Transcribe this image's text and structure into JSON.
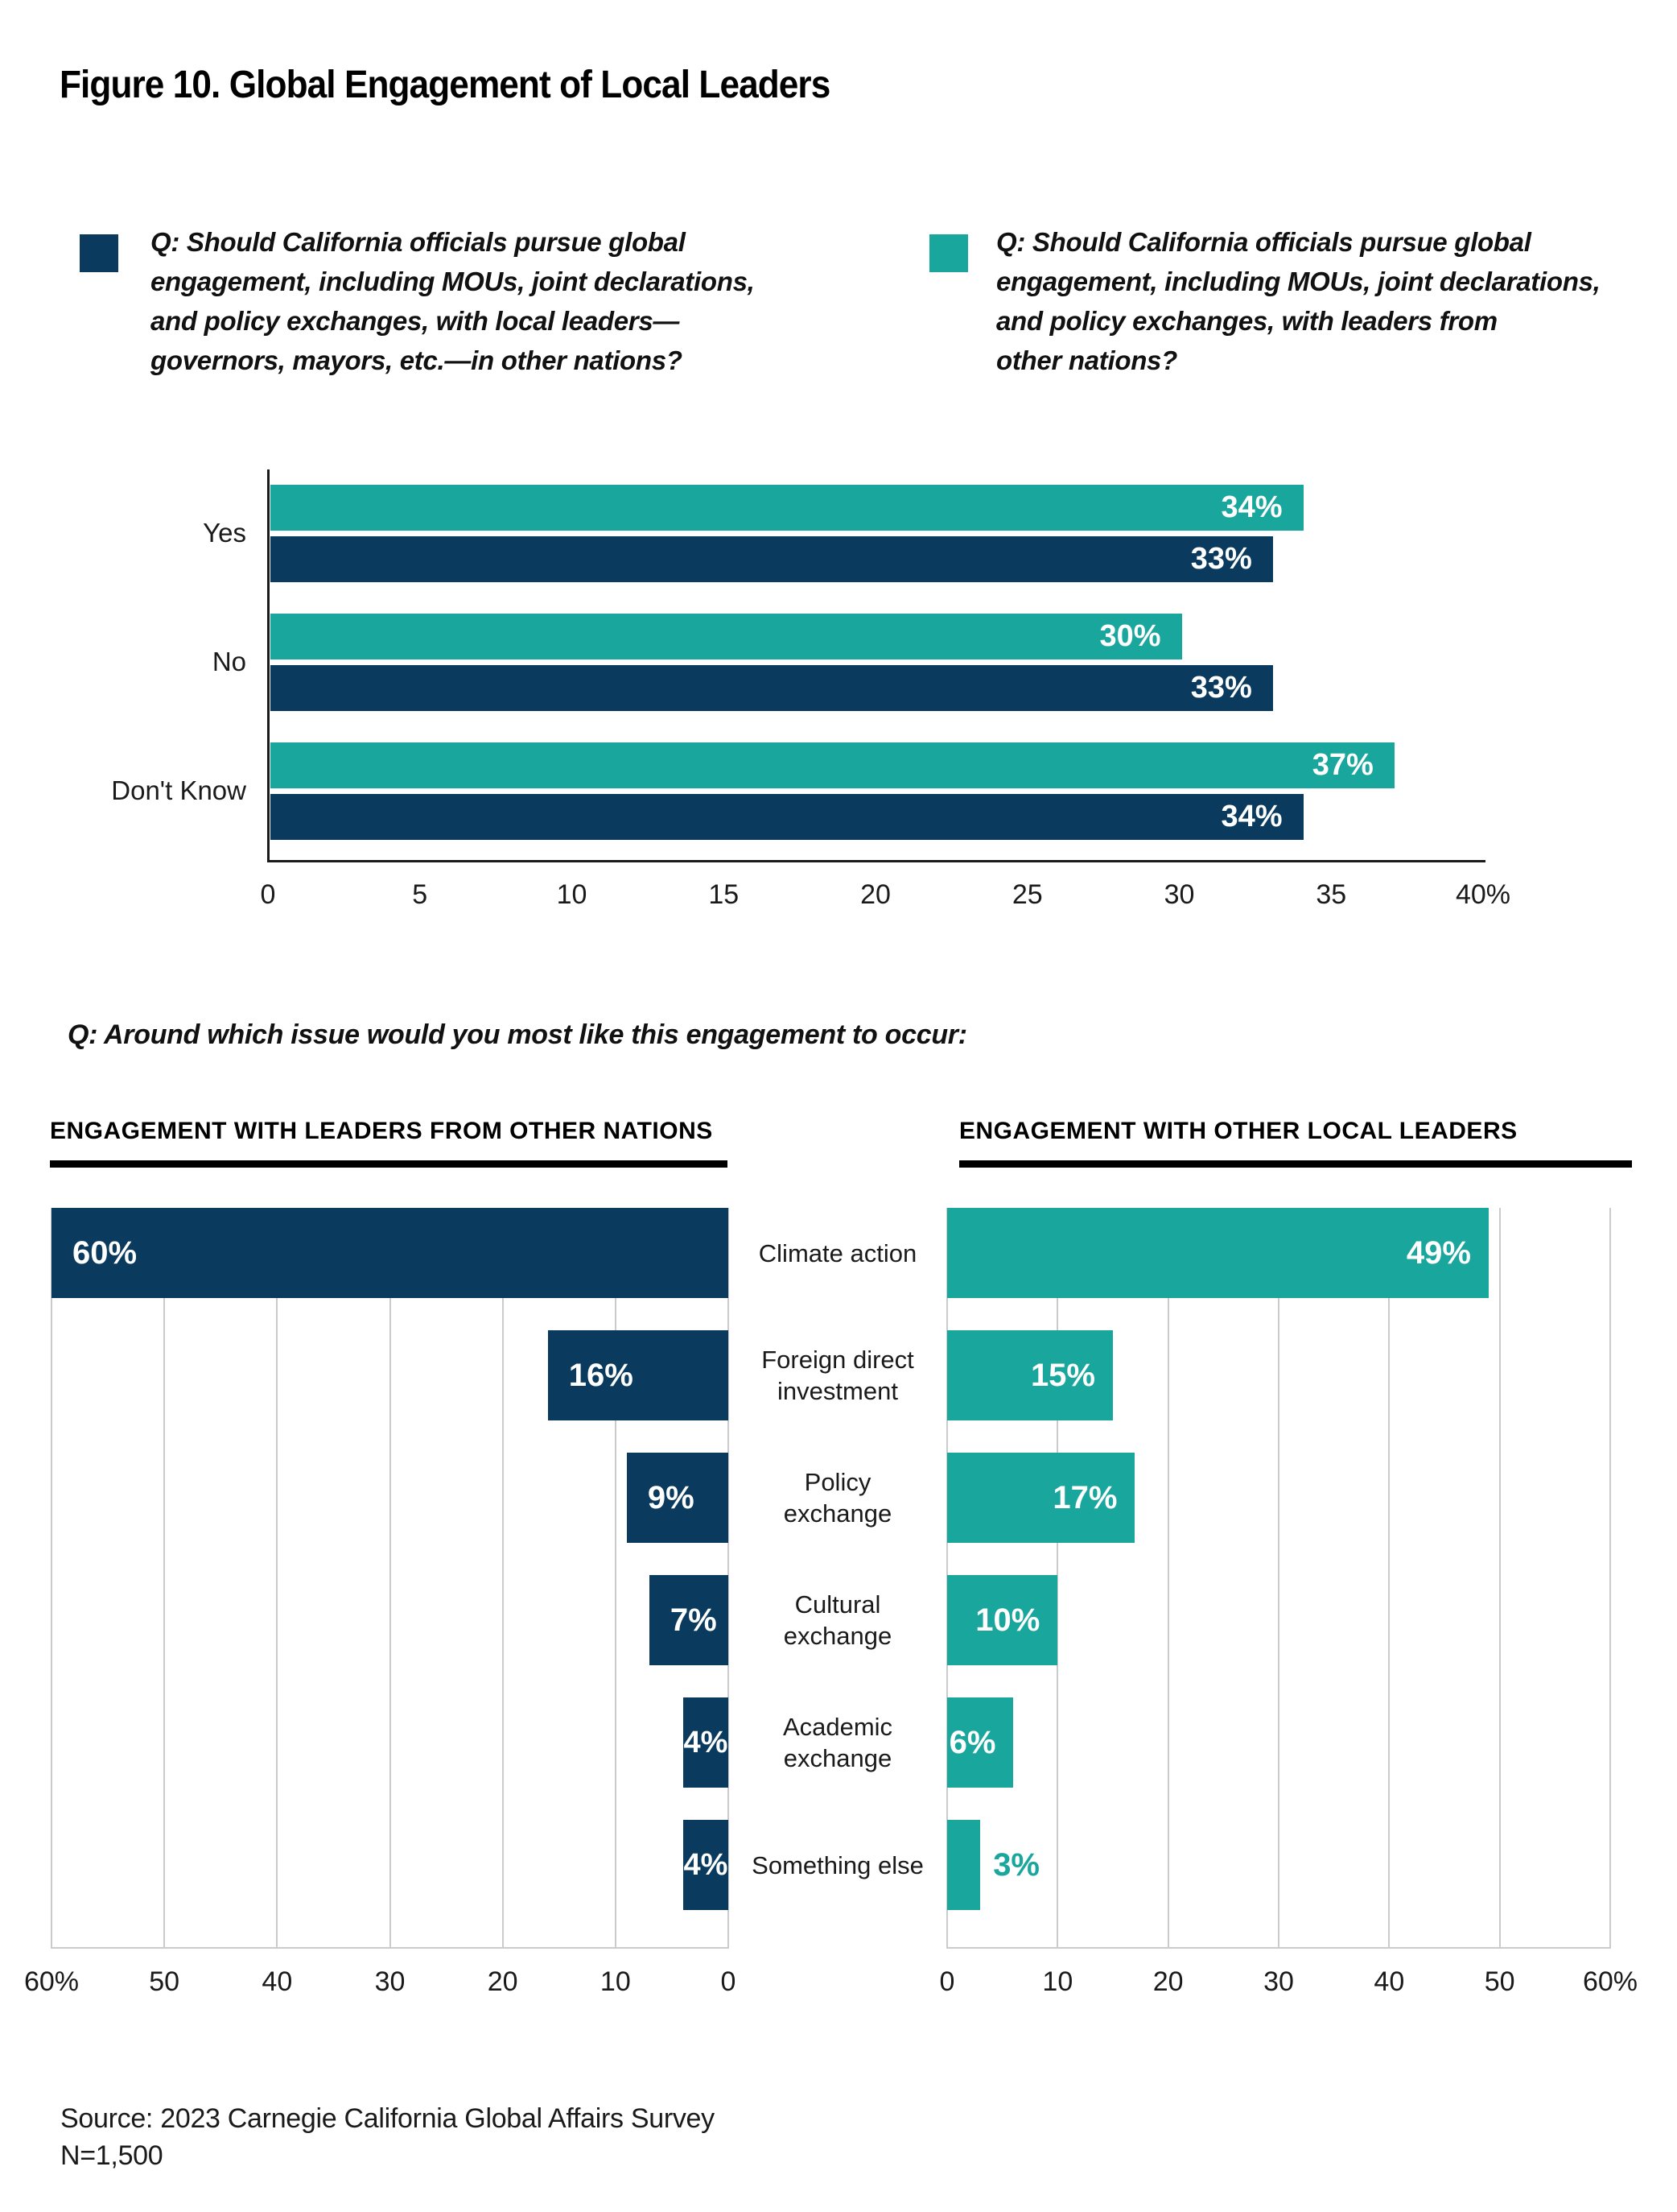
{
  "title": "Figure 10. Global Engagement of Local Leaders",
  "colors": {
    "navy": "#0A3A5E",
    "teal": "#19A79D",
    "grid": "#CBCBCB",
    "axis": "#1A1A1A",
    "text": "#1A1A1A",
    "bar_label": "#FFFFFF"
  },
  "legend": [
    {
      "swatch": "navy",
      "lines": [
        "Q: Should California officials pursue global",
        "engagement, including MOUs, joint declarations,",
        "and policy exchanges, with local leaders—",
        "governors, mayors, etc.—in other nations?"
      ]
    },
    {
      "swatch": "teal",
      "lines": [
        "Q: Should California officials pursue global",
        "engagement, including MOUs, joint declarations,",
        "and policy exchanges, with leaders from",
        "other nations?"
      ]
    }
  ],
  "question2": "Q: Around which issue would you most like this engagement to occur:",
  "source_lines": [
    "Source: 2023 Carnegie California Global Affairs Survey",
    "N=1,500"
  ],
  "chart_data": [
    {
      "id": "top-grouped-bar",
      "type": "bar",
      "orientation": "horizontal",
      "categories": [
        "Yes",
        "No",
        "Don't Know"
      ],
      "series": [
        {
          "name": "Engagement with leaders from other nations",
          "color_key": "teal",
          "values": [
            34,
            30,
            37
          ]
        },
        {
          "name": "Engagement with local leaders in other nations",
          "color_key": "navy",
          "values": [
            33,
            33,
            34
          ]
        }
      ],
      "value_suffix": "%",
      "xlim": [
        0,
        40
      ],
      "tick_labels": [
        "0",
        "5",
        "10",
        "15",
        "20",
        "25",
        "30",
        "35",
        "40%"
      ],
      "grid": false,
      "legend_position": "top"
    },
    {
      "id": "bottom-left-bar",
      "type": "bar",
      "orientation": "horizontal",
      "title": "ENGAGEMENT WITH LEADERS FROM OTHER NATIONS",
      "color_key": "navy",
      "axis_reversed": true,
      "categories": [
        "Climate action",
        "Foreign direct investment",
        "Policy exchange",
        "Cultural exchange",
        "Academic exchange",
        "Something else"
      ],
      "category_lines": [
        [
          "Climate action"
        ],
        [
          "Foreign direct",
          "investment"
        ],
        [
          "Policy",
          "exchange"
        ],
        [
          "Cultural",
          "exchange"
        ],
        [
          "Academic",
          "exchange"
        ],
        [
          "Something else"
        ]
      ],
      "values": [
        60,
        16,
        9,
        7,
        4,
        4
      ],
      "value_suffix": "%",
      "xlim": [
        0,
        60
      ],
      "tick_labels": [
        "60%",
        "50",
        "40",
        "30",
        "20",
        "10",
        "0"
      ],
      "grid": true
    },
    {
      "id": "bottom-right-bar",
      "type": "bar",
      "orientation": "horizontal",
      "title": "ENGAGEMENT WITH OTHER LOCAL LEADERS",
      "color_key": "teal",
      "axis_reversed": false,
      "categories": [
        "Climate action",
        "Foreign direct investment",
        "Policy exchange",
        "Cultural exchange",
        "Academic exchange",
        "Something else"
      ],
      "values": [
        49,
        15,
        17,
        10,
        6,
        3
      ],
      "value_suffix": "%",
      "xlim": [
        0,
        60
      ],
      "tick_labels": [
        "0",
        "10",
        "20",
        "30",
        "40",
        "50",
        "60%"
      ],
      "grid": true
    }
  ]
}
